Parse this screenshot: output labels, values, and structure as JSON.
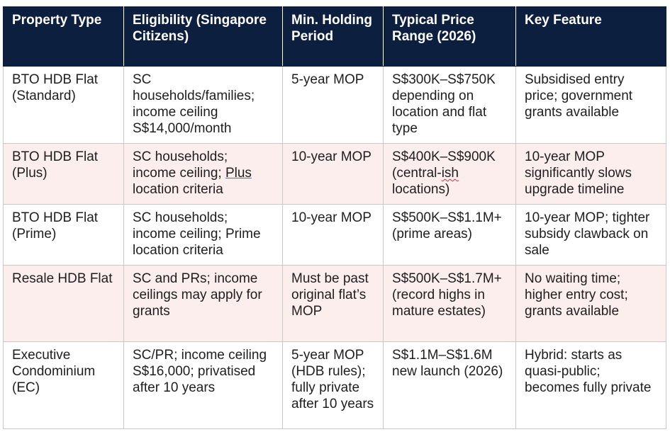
{
  "table": {
    "headers": [
      "Property Type",
      "Eligibility (Singapore Citizens)",
      "Min. Holding Period",
      "Typical Price Range (2026)",
      "Key Feature"
    ],
    "rows": [
      {
        "type": "BTO HDB Flat (Standard)",
        "eligibility": "SC households/families; income ceiling S$14,000/month",
        "holding": "5-year MOP",
        "price": "S$300K–S$750K depending on location and flat type",
        "feature": "Subsidised entry price; government grants available"
      },
      {
        "type": "BTO HDB Flat (Plus)",
        "eligibility_a": "SC households; income ceiling; ",
        "eligibility_b": "Plus",
        "eligibility_c": " location criteria",
        "holding": "10-year MOP",
        "price_a": "S$400K–S$900K (central-",
        "price_b": "ish",
        "price_c": " locations)",
        "feature": "10-year MOP significantly slows upgrade timeline"
      },
      {
        "type": "BTO HDB Flat (Prime)",
        "eligibility": "SC households; income ceiling; Prime location criteria",
        "holding": "10-year MOP",
        "price": "S$500K–S$1.1M+ (prime areas)",
        "feature": "10-year MOP; tighter subsidy clawback on sale"
      },
      {
        "type": "Resale HDB Flat",
        "eligibility": "SC and PRs; income ceilings may apply for grants",
        "holding": "Must be past original flat’s MOP",
        "price": "S$500K–S$1.7M+ (record highs in mature estates)",
        "feature": "No waiting time; higher entry cost; grants available"
      },
      {
        "type": "Executive Condominium (EC)",
        "eligibility": "SC/PR; income ceiling S$16,000; privatised after 10 years",
        "holding": "5-year MOP (HDB rules); fully private after 10 years",
        "price": "S$1.1M–S$1.6M new launch (2026)",
        "feature": "Hybrid: starts as quasi-public; becomes fully private"
      }
    ]
  },
  "colors": {
    "header_bg": "#0c1f3f",
    "header_text": "#ffffff",
    "row_alt_bg": "#fdeeee",
    "border": "#c8c8c8"
  }
}
